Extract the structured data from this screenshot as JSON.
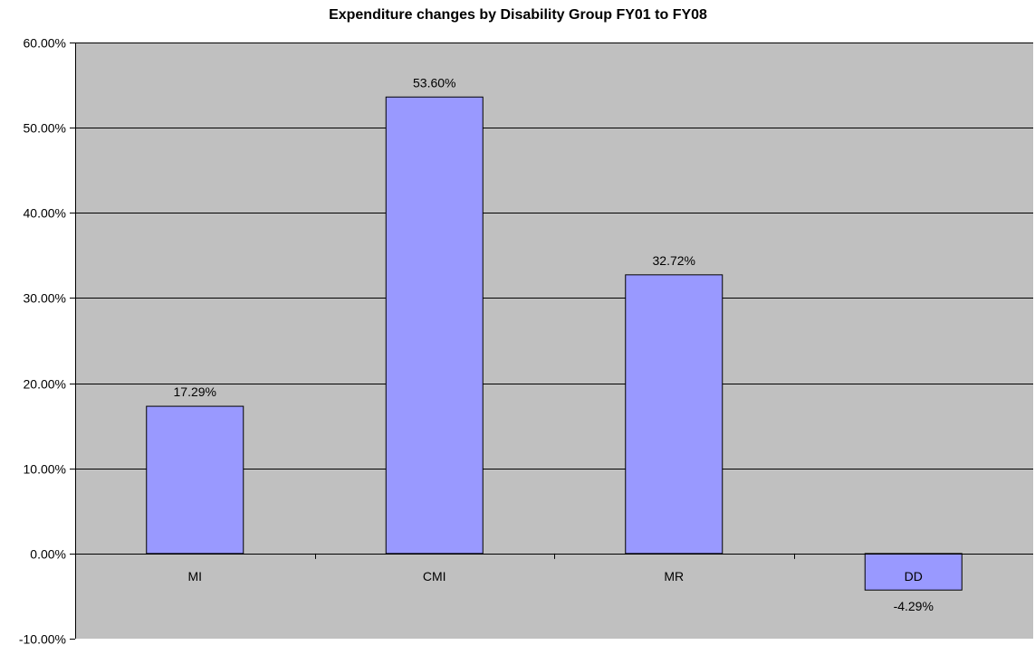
{
  "chart_data": {
    "type": "bar",
    "title": "Expenditure changes by Disability Group FY01 to FY08",
    "categories": [
      "MI",
      "CMI",
      "MR",
      "DD"
    ],
    "values": [
      17.29,
      53.6,
      32.72,
      -4.29
    ],
    "data_labels": [
      "17.29%",
      "53.60%",
      "32.72%",
      "-4.29%"
    ],
    "ylim": [
      -10,
      60
    ],
    "y_ticks": [
      -10,
      0,
      10,
      20,
      30,
      40,
      50,
      60
    ],
    "y_tick_labels": [
      "-10.00%",
      "0.00%",
      "10.00%",
      "20.00%",
      "30.00%",
      "40.00%",
      "50.00%",
      "60.00%"
    ],
    "xlabel": "",
    "ylabel": "",
    "grid": true,
    "legend": "none",
    "colors": {
      "plot_background": "#c0c0c0",
      "bar_fill": "#9999ff",
      "bar_stroke": "#000000",
      "gridline": "#000000"
    }
  }
}
